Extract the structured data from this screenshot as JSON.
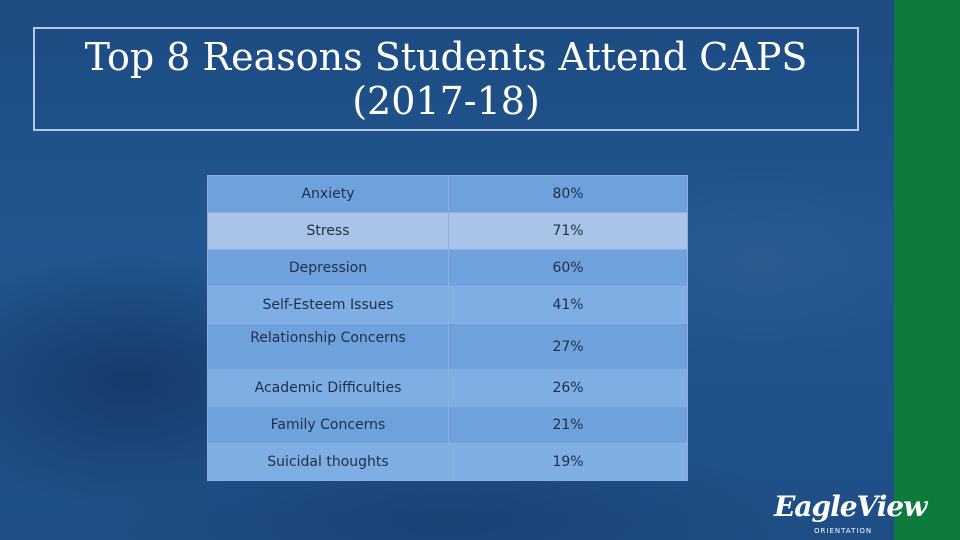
{
  "slide": {
    "title_line1": "Top 8 Reasons Students Attend CAPS",
    "title_line2": "(2017-18)"
  },
  "table": {
    "rows": [
      {
        "reason": "Anxiety",
        "percent": "80%"
      },
      {
        "reason": "Stress",
        "percent": "71%"
      },
      {
        "reason": "Depression",
        "percent": "60%"
      },
      {
        "reason": "Self-Esteem Issues",
        "percent": "41%"
      },
      {
        "reason": "Relationship Concerns",
        "percent": "27%"
      },
      {
        "reason": "Academic Difficulties",
        "percent": "26%"
      },
      {
        "reason": "Family Concerns",
        "percent": "21%"
      },
      {
        "reason": "Suicidal thoughts",
        "percent": "19%"
      }
    ]
  },
  "logo": {
    "main": "EagleView",
    "sub": "ORIENTATION"
  },
  "colors": {
    "background": "#1f4f86",
    "accent_bar": "#0e7a3c",
    "row_primary": "#6fa2dc",
    "row_highlight": "#a9c4e8"
  }
}
